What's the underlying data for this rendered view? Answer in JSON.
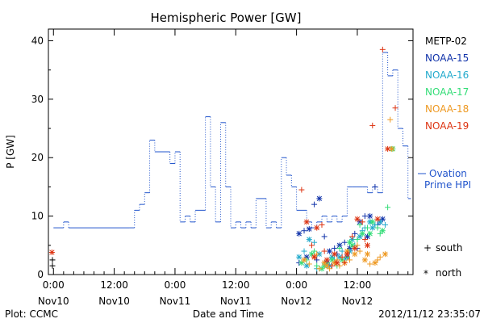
{
  "chart_data": {
    "type": "scatter",
    "title": "Hemispheric Power [GW]",
    "xlabel": "Date and Time",
    "ylabel": "P [GW]",
    "ylim": [
      0,
      42
    ],
    "yticks": [
      0,
      10,
      20,
      30,
      40
    ],
    "xlim_hours": [
      -1,
      71
    ],
    "xticks": [
      {
        "hour": 0,
        "time": "0:00",
        "day": "Nov10"
      },
      {
        "hour": 12,
        "time": "12:00",
        "day": "Nov10"
      },
      {
        "hour": 24,
        "time": "0:00",
        "day": "Nov11"
      },
      {
        "hour": 36,
        "time": "12:00",
        "day": "Nov11"
      },
      {
        "hour": 48,
        "time": "0:00",
        "day": "Nov12"
      },
      {
        "hour": 60,
        "time": "12:00",
        "day": "Nov12"
      }
    ],
    "grid": false,
    "legend_position": "right",
    "ovation_label_line1": "Ovation",
    "ovation_label_line2": "Prime HPI",
    "ovation_series": {
      "color": "#2255cc",
      "style": "dotted-step",
      "x": [
        0,
        2,
        3,
        15,
        16,
        17,
        18,
        19,
        20,
        23,
        24,
        25,
        26,
        27,
        28,
        30,
        31,
        32,
        33,
        34,
        35,
        36,
        37,
        38,
        39,
        40,
        42,
        43,
        44,
        45,
        46,
        47,
        48,
        50,
        51,
        52,
        53,
        54,
        55,
        56,
        57,
        58,
        59,
        60,
        61,
        62,
        63,
        64,
        65,
        66,
        67,
        68,
        69,
        70
      ],
      "y": [
        8,
        9,
        8,
        8,
        11,
        12,
        14,
        23,
        21,
        19,
        21,
        9,
        10,
        9,
        11,
        27,
        15,
        9,
        26,
        15,
        8,
        9,
        8,
        9,
        8,
        13,
        8,
        9,
        8,
        20,
        17,
        15,
        11,
        9,
        8,
        9,
        10,
        9,
        10,
        9,
        10,
        15,
        15,
        15,
        15,
        14,
        15,
        14,
        38,
        34,
        35,
        25,
        22,
        13
      ]
    },
    "series": [
      {
        "name": "METP-02",
        "color": "#000000",
        "points": [
          [
            -0.2,
            1.5
          ],
          [
            -0.2,
            2.5
          ]
        ]
      },
      {
        "name": "NOAA-15",
        "color": "#1133aa",
        "points": [
          [
            48.5,
            7.0
          ],
          [
            49.5,
            7.5
          ],
          [
            50.5,
            7.8
          ],
          [
            51.5,
            12.0
          ],
          [
            52.5,
            13.0
          ],
          [
            53.5,
            6.5
          ],
          [
            54.5,
            4.0
          ],
          [
            55.5,
            4.5
          ],
          [
            56.5,
            5.0
          ],
          [
            57.5,
            5.5
          ],
          [
            58.5,
            4.5
          ],
          [
            59.5,
            7.0
          ],
          [
            60.5,
            9.0
          ],
          [
            61.5,
            10.0
          ],
          [
            62.5,
            10.0
          ],
          [
            63.5,
            15.0
          ],
          [
            64.5,
            9.0
          ],
          [
            48.5,
            2.0
          ],
          [
            50.0,
            3.0
          ],
          [
            52.0,
            2.5
          ],
          [
            54.0,
            2.0
          ],
          [
            56.0,
            3.5
          ],
          [
            58.0,
            3.0
          ],
          [
            60.0,
            4.5
          ],
          [
            62.0,
            6.5
          ],
          [
            64.0,
            8.5
          ],
          [
            65.0,
            9.5
          ]
        ]
      },
      {
        "name": "NOAA-16",
        "color": "#22aacc",
        "points": [
          [
            48.5,
            3.0
          ],
          [
            49.5,
            4.0
          ],
          [
            50.5,
            6.0
          ],
          [
            51.5,
            5.5
          ],
          [
            52.5,
            3.5
          ],
          [
            53.5,
            2.0
          ],
          [
            54.5,
            1.5
          ],
          [
            55.5,
            2.5
          ],
          [
            56.5,
            3.0
          ],
          [
            57.5,
            2.5
          ],
          [
            58.5,
            4.0
          ],
          [
            59.5,
            5.0
          ],
          [
            60.5,
            6.5
          ],
          [
            61.5,
            8.0
          ],
          [
            62.5,
            9.0
          ],
          [
            63.5,
            8.5
          ],
          [
            64.5,
            9.0
          ],
          [
            65.5,
            8.5
          ],
          [
            50.0,
            1.5
          ],
          [
            52.0,
            1.0
          ],
          [
            55.0,
            3.0
          ],
          [
            57.0,
            4.0
          ],
          [
            59.0,
            6.0
          ],
          [
            61.0,
            7.5
          ],
          [
            63.0,
            8.0
          ]
        ]
      },
      {
        "name": "NOAA-17",
        "color": "#33dd77",
        "points": [
          [
            49.0,
            2.0
          ],
          [
            50.0,
            2.5
          ],
          [
            51.0,
            3.5
          ],
          [
            52.0,
            1.5
          ],
          [
            53.0,
            1.0
          ],
          [
            54.0,
            2.0
          ],
          [
            55.0,
            2.5
          ],
          [
            56.0,
            1.5
          ],
          [
            57.0,
            2.5
          ],
          [
            58.0,
            3.0
          ],
          [
            59.0,
            5.0
          ],
          [
            60.0,
            6.0
          ],
          [
            61.0,
            7.0
          ],
          [
            62.0,
            8.0
          ],
          [
            63.0,
            9.0
          ],
          [
            64.0,
            8.0
          ],
          [
            65.0,
            7.5
          ],
          [
            66.0,
            11.5
          ],
          [
            67.0,
            21.5
          ],
          [
            51.5,
            4.0
          ],
          [
            53.5,
            1.5
          ],
          [
            56.5,
            4.5
          ],
          [
            58.5,
            5.5
          ],
          [
            60.5,
            8.5
          ],
          [
            62.5,
            7.0
          ],
          [
            64.5,
            7.0
          ]
        ]
      },
      {
        "name": "NOAA-18",
        "color": "#ee9922",
        "points": [
          [
            49.5,
            2.5
          ],
          [
            50.5,
            1.8
          ],
          [
            51.5,
            3.0
          ],
          [
            52.5,
            1.0
          ],
          [
            53.5,
            2.0
          ],
          [
            54.5,
            1.0
          ],
          [
            55.5,
            2.0
          ],
          [
            56.5,
            1.5
          ],
          [
            57.5,
            2.0
          ],
          [
            58.5,
            2.5
          ],
          [
            59.5,
            3.5
          ],
          [
            60.5,
            4.0
          ],
          [
            61.5,
            2.5
          ],
          [
            62.5,
            1.8
          ],
          [
            63.5,
            2.0
          ],
          [
            64.5,
            3.0
          ],
          [
            65.5,
            3.5
          ],
          [
            66.5,
            26.5
          ],
          [
            66.8,
            21.5
          ],
          [
            52.0,
            3.5
          ],
          [
            54.0,
            1.5
          ],
          [
            56.0,
            2.5
          ],
          [
            58.0,
            4.0
          ],
          [
            60.0,
            5.0
          ],
          [
            62.0,
            3.5
          ],
          [
            64.0,
            2.5
          ]
        ]
      },
      {
        "name": "NOAA-19",
        "color": "#dd3311",
        "points": [
          [
            -0.3,
            3.8
          ],
          [
            49.0,
            14.5
          ],
          [
            50.0,
            9.0
          ],
          [
            51.0,
            5.0
          ],
          [
            52.0,
            8.0
          ],
          [
            53.0,
            8.5
          ],
          [
            54.0,
            2.5
          ],
          [
            55.0,
            1.5
          ],
          [
            56.0,
            2.0
          ],
          [
            57.0,
            3.0
          ],
          [
            58.0,
            3.5
          ],
          [
            59.0,
            6.5
          ],
          [
            60.0,
            9.5
          ],
          [
            61.0,
            9.0
          ],
          [
            62.0,
            5.0
          ],
          [
            63.0,
            25.5
          ],
          [
            64.0,
            9.5
          ],
          [
            65.0,
            38.5
          ],
          [
            66.0,
            21.5
          ],
          [
            67.5,
            28.5
          ],
          [
            51.5,
            3.0
          ],
          [
            53.5,
            4.0
          ],
          [
            55.5,
            3.5
          ],
          [
            57.5,
            2.0
          ],
          [
            59.5,
            4.5
          ],
          [
            61.5,
            6.0
          ]
        ]
      }
    ],
    "markers_legend": [
      {
        "symbol": "+",
        "label": "south"
      },
      {
        "symbol": "*",
        "label": "north"
      }
    ]
  },
  "footer": {
    "plot_source": "Plot: CCMC",
    "timestamp": "2012/11/12 23:35:07"
  }
}
